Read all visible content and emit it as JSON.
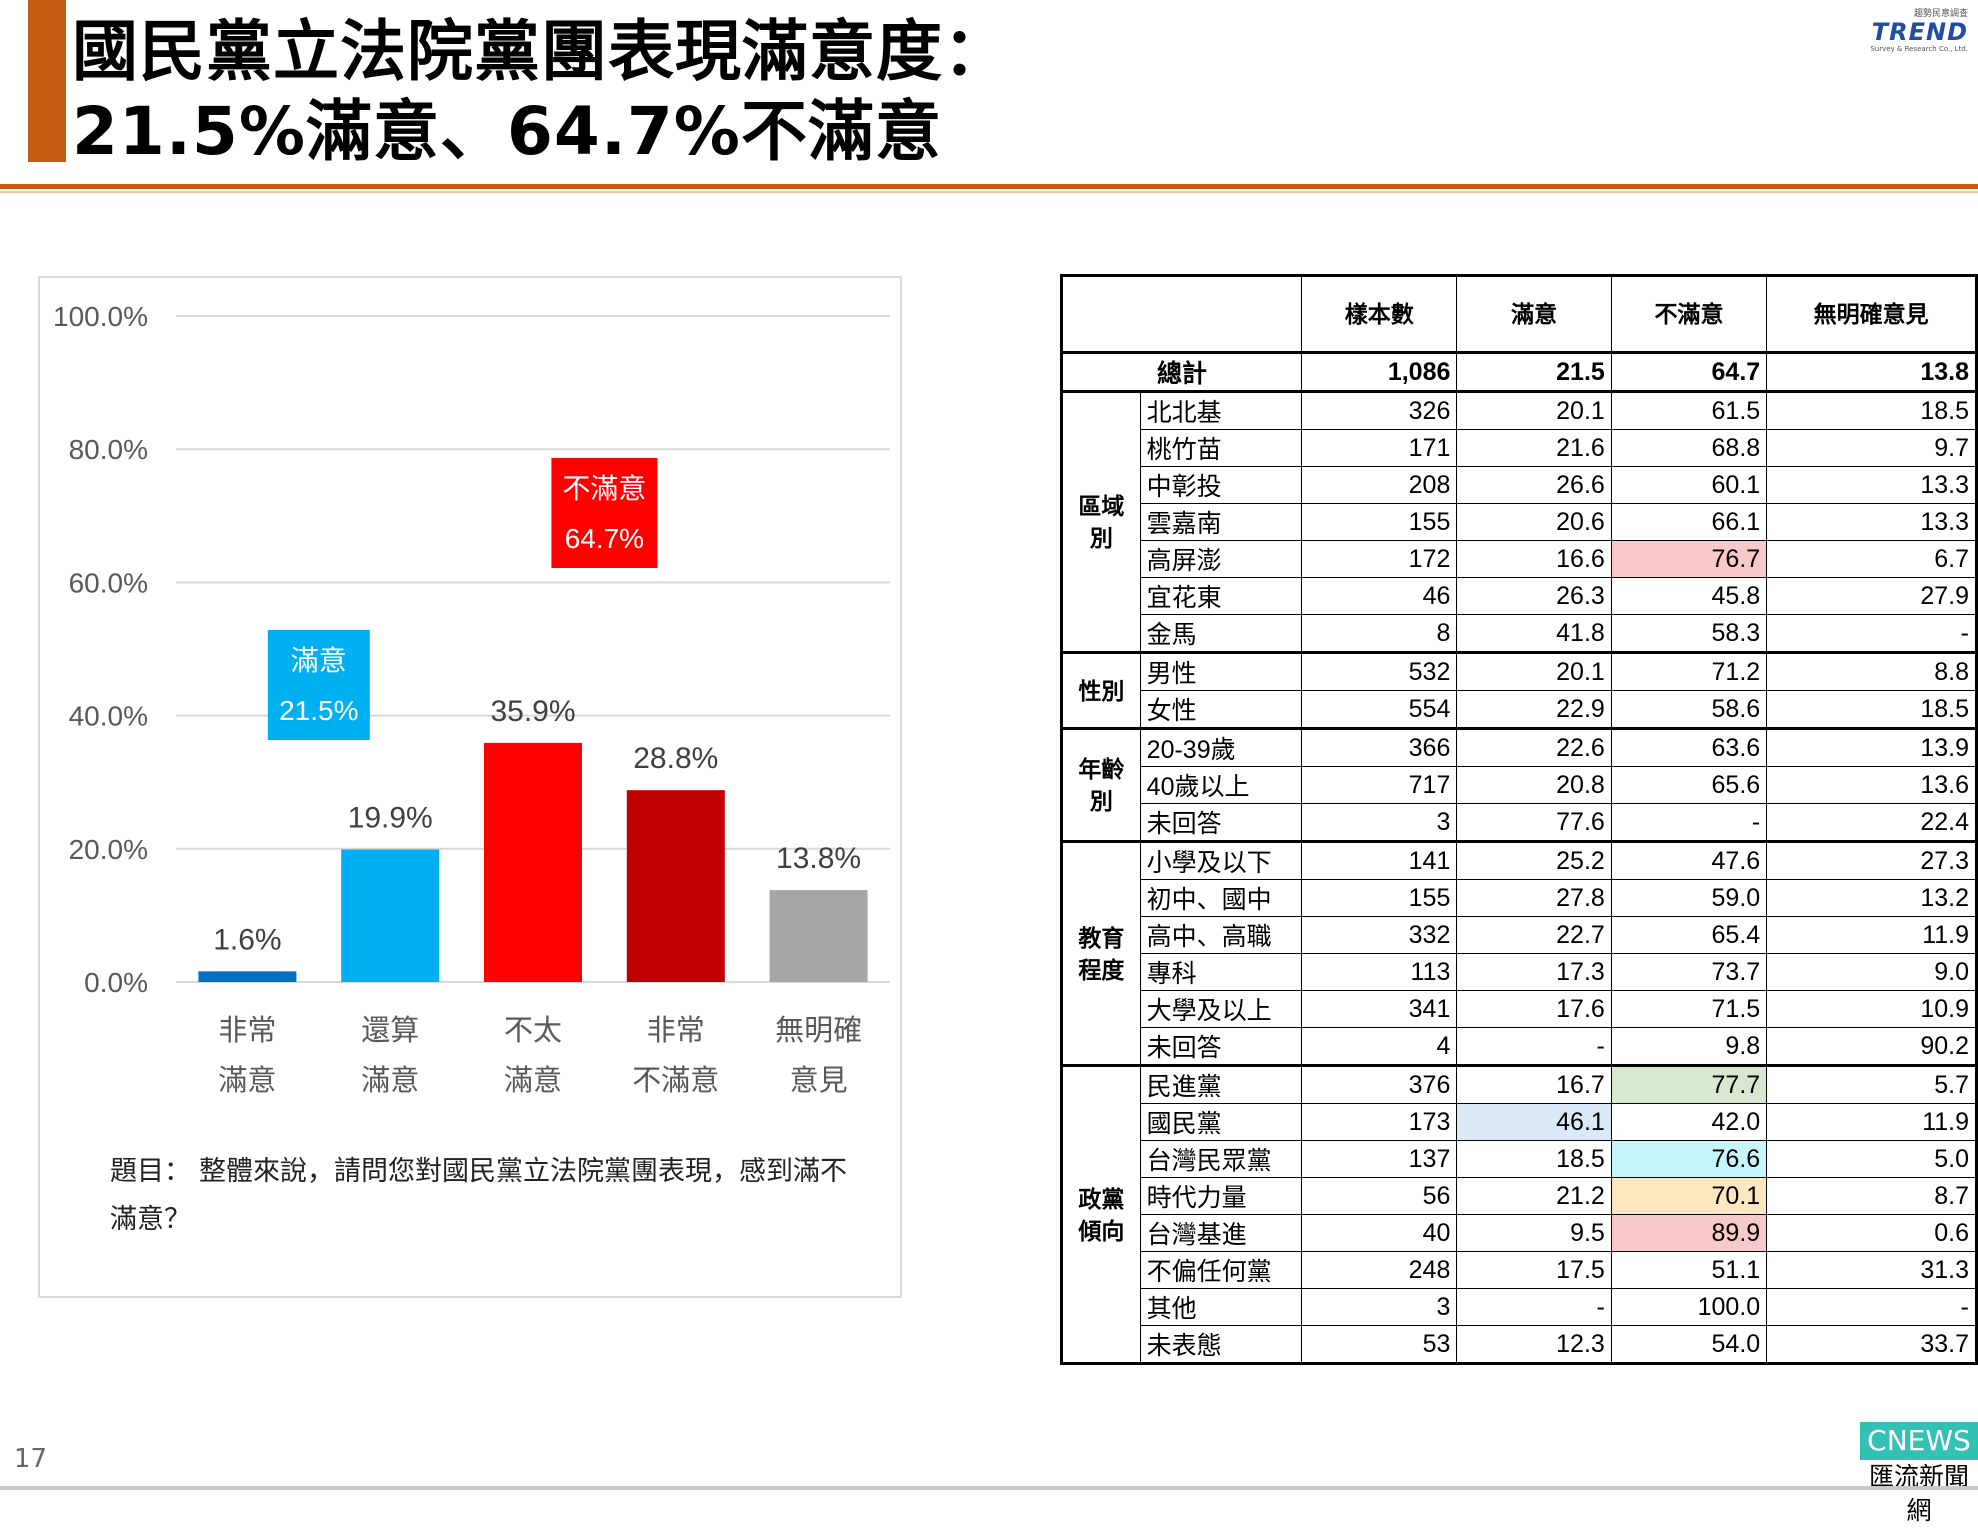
{
  "header": {
    "title_line1": "國民黨立法院黨團表現滿意度：",
    "title_line2": "21.5%滿意、64.7%不滿意",
    "logo_small": "趨勢民意調查",
    "logo_brand": "TREND",
    "logo_sub": "Survey & Research Co., Ltd."
  },
  "chart_data": {
    "type": "bar",
    "categories": [
      [
        "非常",
        "滿意"
      ],
      [
        "還算",
        "滿意"
      ],
      [
        "不太",
        "滿意"
      ],
      [
        "非常",
        "不滿意"
      ],
      [
        "無明確",
        "意見"
      ]
    ],
    "values": [
      1.6,
      19.9,
      35.9,
      28.8,
      13.8
    ],
    "value_labels": [
      "1.6%",
      "19.9%",
      "35.9%",
      "28.8%",
      "13.8%"
    ],
    "colors": [
      "#0070c0",
      "#00b0f0",
      "#ff0000",
      "#c00000",
      "#a6a6a6"
    ],
    "ylim": [
      0,
      100
    ],
    "yticks": [
      "0.0%",
      "20.0%",
      "40.0%",
      "60.0%",
      "80.0%",
      "100.0%"
    ],
    "grid": true,
    "callouts": [
      {
        "label": "滿意",
        "value": "21.5%",
        "color": "#00b0f0"
      },
      {
        "label": "不滿意",
        "value": "64.7%",
        "color": "#ff0000"
      }
    ]
  },
  "question": {
    "label": "題目：",
    "text": "整體來說，請問您對國民黨立法院黨團表現，感到滿不滿意？"
  },
  "table": {
    "headers": [
      "樣本數",
      "滿意",
      "不滿意",
      "無明確意見"
    ],
    "total": {
      "label": "總計",
      "values": [
        "1,086",
        "21.5",
        "64.7",
        "13.8"
      ]
    },
    "groups": [
      {
        "name": "區域別",
        "rows": [
          {
            "label": "北北基",
            "values": [
              "326",
              "20.1",
              "61.5",
              "18.5"
            ]
          },
          {
            "label": "桃竹苗",
            "values": [
              "171",
              "21.6",
              "68.8",
              "9.7"
            ]
          },
          {
            "label": "中彰投",
            "values": [
              "208",
              "26.6",
              "60.1",
              "13.3"
            ]
          },
          {
            "label": "雲嘉南",
            "values": [
              "155",
              "20.6",
              "66.1",
              "13.3"
            ]
          },
          {
            "label": "高屏澎",
            "values": [
              "172",
              "16.6",
              "76.7",
              "6.7"
            ],
            "hl": [
              null,
              null,
              "pink",
              null
            ]
          },
          {
            "label": "宜花東",
            "values": [
              "46",
              "26.3",
              "45.8",
              "27.9"
            ]
          },
          {
            "label": "金馬",
            "values": [
              "8",
              "41.8",
              "58.3",
              "-"
            ]
          }
        ]
      },
      {
        "name": "性別",
        "rows": [
          {
            "label": "男性",
            "values": [
              "532",
              "20.1",
              "71.2",
              "8.8"
            ]
          },
          {
            "label": "女性",
            "values": [
              "554",
              "22.9",
              "58.6",
              "18.5"
            ]
          }
        ]
      },
      {
        "name": "年齡別",
        "rows": [
          {
            "label": "20-39歲",
            "values": [
              "366",
              "22.6",
              "63.6",
              "13.9"
            ]
          },
          {
            "label": "40歲以上",
            "values": [
              "717",
              "20.8",
              "65.6",
              "13.6"
            ]
          },
          {
            "label": "未回答",
            "values": [
              "3",
              "77.6",
              "-",
              "22.4"
            ]
          }
        ]
      },
      {
        "name": "教育程度",
        "rows": [
          {
            "label": "小學及以下",
            "values": [
              "141",
              "25.2",
              "47.6",
              "27.3"
            ]
          },
          {
            "label": "初中、國中",
            "values": [
              "155",
              "27.8",
              "59.0",
              "13.2"
            ]
          },
          {
            "label": "高中、高職",
            "values": [
              "332",
              "22.7",
              "65.4",
              "11.9"
            ]
          },
          {
            "label": "專科",
            "values": [
              "113",
              "17.3",
              "73.7",
              "9.0"
            ]
          },
          {
            "label": "大學及以上",
            "values": [
              "341",
              "17.6",
              "71.5",
              "10.9"
            ]
          },
          {
            "label": "未回答",
            "values": [
              "4",
              "-",
              "9.8",
              "90.2"
            ]
          }
        ]
      },
      {
        "name": "政黨傾向",
        "rows": [
          {
            "label": "民進黨",
            "values": [
              "376",
              "16.7",
              "77.7",
              "5.7"
            ],
            "hl": [
              null,
              null,
              "green",
              null
            ]
          },
          {
            "label": "國民黨",
            "values": [
              "173",
              "46.1",
              "42.0",
              "11.9"
            ],
            "hl": [
              null,
              "blue",
              null,
              null
            ]
          },
          {
            "label": "台灣民眾黨",
            "values": [
              "137",
              "18.5",
              "76.6",
              "5.0"
            ],
            "hl": [
              null,
              null,
              "cyan",
              null
            ]
          },
          {
            "label": "時代力量",
            "values": [
              "56",
              "21.2",
              "70.1",
              "8.7"
            ],
            "hl": [
              null,
              null,
              "yellow",
              null
            ]
          },
          {
            "label": "台灣基進",
            "values": [
              "40",
              "9.5",
              "89.9",
              "0.6"
            ],
            "hl": [
              null,
              null,
              "pink",
              null
            ]
          },
          {
            "label": "不偏任何黨",
            "values": [
              "248",
              "17.5",
              "51.1",
              "31.3"
            ]
          },
          {
            "label": "其他",
            "values": [
              "3",
              "-",
              "100.0",
              "-"
            ]
          },
          {
            "label": "未表態",
            "values": [
              "53",
              "12.3",
              "54.0",
              "33.7"
            ]
          }
        ]
      }
    ]
  },
  "footer": {
    "page_number": "17",
    "cnews_top": "CNEWS",
    "cnews_bottom": "匯流新聞網"
  }
}
